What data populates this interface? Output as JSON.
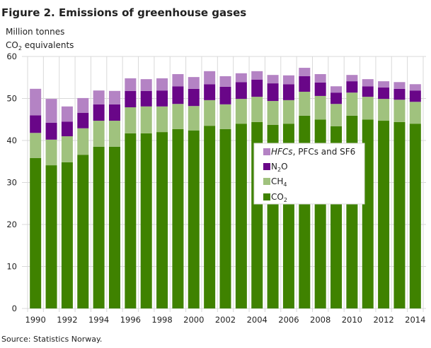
{
  "chart_data": {
    "type": "bar",
    "stacked": true,
    "title": "Figure 2. Emissions of greenhouse gases",
    "ylabel_line1": "Million tonnes",
    "ylabel_line2_main": "CO",
    "ylabel_line2_sub": "2",
    "ylabel_line2_rest": " equivalents",
    "source": "Source: Statistics Norway.",
    "ylim": [
      0,
      60
    ],
    "yticks": [
      0,
      10,
      20,
      30,
      40,
      50,
      60
    ],
    "grid": true,
    "legend_placement": "center-right",
    "categories": [
      "1990",
      "1991",
      "1992",
      "1993",
      "1994",
      "1995",
      "1996",
      "1997",
      "1998",
      "1999",
      "2000",
      "2001",
      "2002",
      "2003",
      "2004",
      "2005",
      "2006",
      "2007",
      "2008",
      "2009",
      "2010",
      "2011",
      "2012",
      "2013",
      "2014"
    ],
    "xtick_labels": [
      "1990",
      "1992",
      "1994",
      "1996",
      "1998",
      "2000",
      "2002",
      "2004",
      "2006",
      "2008",
      "2010",
      "2012",
      "2014"
    ],
    "series": [
      {
        "name": "CO2",
        "legend_main": "CO",
        "legend_sub": "2",
        "color": "#3f8200",
        "values": [
          35.8,
          34.1,
          34.8,
          36.6,
          38.5,
          38.5,
          41.7,
          41.7,
          42.0,
          42.7,
          42.4,
          43.5,
          42.7,
          44.0,
          44.4,
          43.7,
          44.0,
          45.9,
          45.0,
          43.4,
          45.9,
          45.0,
          44.7,
          44.4,
          44.0
        ]
      },
      {
        "name": "CH4",
        "legend_main": "CH",
        "legend_sub": "4",
        "color": "#a0c27e",
        "values": [
          6.0,
          6.1,
          6.2,
          6.3,
          6.2,
          6.2,
          6.2,
          6.4,
          6.1,
          6.0,
          5.8,
          6.1,
          5.9,
          5.9,
          6.0,
          5.7,
          5.6,
          5.7,
          5.6,
          5.3,
          5.5,
          5.4,
          5.2,
          5.3,
          5.2
        ]
      },
      {
        "name": "N2O",
        "legend_main": "N",
        "legend_sub": "2",
        "legend_rest": "O",
        "color": "#690688",
        "values": [
          4.2,
          4.0,
          3.5,
          3.7,
          3.9,
          3.9,
          3.9,
          3.7,
          3.8,
          4.2,
          4.1,
          3.8,
          4.2,
          4.0,
          4.1,
          4.2,
          3.8,
          3.7,
          3.2,
          2.7,
          2.7,
          2.5,
          2.7,
          2.6,
          2.7
        ]
      },
      {
        "name": "HFCs, PFCs and SF6",
        "legend_italic": "HFCs",
        "legend_rest": ", PFCs and SF6",
        "color": "#b483c4",
        "values": [
          6.3,
          5.7,
          3.6,
          3.5,
          3.3,
          3.2,
          3.0,
          2.8,
          2.9,
          2.9,
          2.8,
          3.1,
          2.5,
          2.1,
          2.0,
          2.0,
          2.1,
          2.0,
          2.0,
          1.5,
          1.5,
          1.7,
          1.5,
          1.6,
          1.5
        ]
      }
    ]
  }
}
